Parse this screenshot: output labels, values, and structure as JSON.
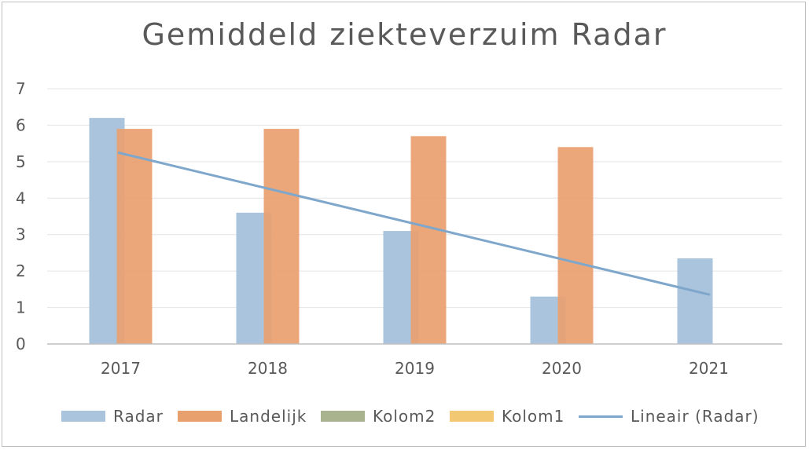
{
  "chart_data": {
    "type": "bar",
    "title": "Gemiddeld ziekteverzuim Radar",
    "categories": [
      "2017",
      "2018",
      "2019",
      "2020",
      "2021"
    ],
    "ylim": [
      0,
      7
    ],
    "yticks": [
      "0",
      "1",
      "2",
      "3",
      "4",
      "5",
      "6",
      "7"
    ],
    "grid": true,
    "legend_position": "bottom",
    "series": [
      {
        "name": "Radar",
        "values": [
          6.2,
          3.6,
          3.1,
          1.3,
          2.35
        ],
        "color": "#a9c4dc"
      },
      {
        "name": "Landelijk",
        "values": [
          5.9,
          5.9,
          5.7,
          5.4,
          null
        ],
        "color": "#e9a06f"
      },
      {
        "name": "Kolom2",
        "values": [
          null,
          null,
          null,
          null,
          null
        ],
        "color": "#a9b48f"
      },
      {
        "name": "Kolom1",
        "values": [
          null,
          null,
          null,
          null,
          null
        ],
        "color": "#f2c872"
      }
    ],
    "trendline": {
      "name": "Lineair (Radar)",
      "start": 5.25,
      "end": 1.35,
      "color": "#7ea7cb"
    }
  }
}
